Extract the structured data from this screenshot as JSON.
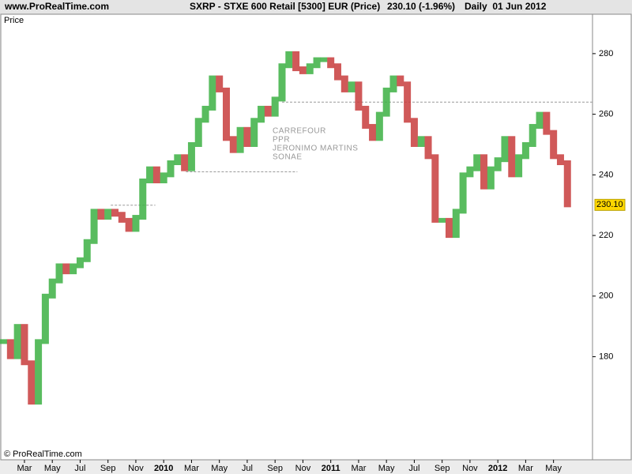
{
  "chart_data": {
    "type": "price-bars",
    "site": "www.ProRealTime.com",
    "title": "SXRP - STXE 600 Retail [5300] EUR (Price)",
    "quote": "230.10 (-1.96%)",
    "period": "Daily  01 Jun 2012",
    "panel_label": "Price",
    "copyright": "© ProRealTime.com",
    "annotations": [
      "CARREFOUR",
      "PPR",
      "JERONIMO MARTINS",
      "SONAE"
    ],
    "up_color": "#3cb043",
    "down_color": "#c83c3c",
    "x": [
      0.5,
      1,
      1.5,
      2,
      2.5,
      3,
      3.5,
      4,
      4.5,
      5,
      5.5,
      6,
      6.5,
      7,
      7.5,
      8,
      8.5,
      9,
      9.5,
      10,
      10.5,
      11,
      11.5,
      12,
      12.5,
      13,
      13.5,
      14,
      14.5,
      15,
      15.5,
      16,
      16.5,
      17,
      17.5,
      18,
      18.5,
      19,
      19.5,
      20,
      20.5,
      21,
      21.5,
      22,
      22.5,
      23,
      23.5,
      24,
      24.5,
      25,
      25.5,
      26,
      26.5,
      27,
      27.5,
      28,
      28.5,
      29,
      29.5,
      30,
      30.5,
      31,
      31.5,
      32,
      32.5,
      33,
      33.5,
      34,
      34.5,
      35,
      35.5,
      36,
      36.5,
      37,
      37.5,
      38,
      38.5,
      39,
      39.5,
      40,
      40.5,
      41
    ],
    "values": [
      185,
      180,
      190,
      178,
      165,
      185,
      200,
      205,
      210,
      208,
      210,
      212,
      218,
      228,
      226,
      228,
      227,
      225,
      222,
      226,
      238,
      242,
      238,
      240,
      244,
      246,
      242,
      250,
      258,
      262,
      272,
      268,
      252,
      248,
      255,
      250,
      258,
      262,
      260,
      265,
      276,
      280,
      275,
      274,
      276,
      278,
      278,
      276,
      272,
      268,
      270,
      262,
      256,
      252,
      260,
      268,
      272,
      270,
      258,
      250,
      252,
      246,
      225,
      225,
      220,
      228,
      240,
      242,
      246,
      236,
      242,
      245,
      252,
      240,
      246,
      250,
      256,
      260,
      254,
      246,
      244,
      230.1
    ],
    "last_price": {
      "value": 230.1,
      "label": "230.10"
    },
    "levels": [
      {
        "value": 264,
        "from": 20.5,
        "to": 42.8
      },
      {
        "value": 241,
        "from": 13.6,
        "to": 21.6
      },
      {
        "value": 230,
        "from": 8.2,
        "to": 11.4
      }
    ],
    "xlim": [
      0.3,
      42.8
    ],
    "xticks": [
      {
        "value": 2,
        "label": "Mar"
      },
      {
        "value": 4,
        "label": "May"
      },
      {
        "value": 6,
        "label": "Jul"
      },
      {
        "value": 8,
        "label": "Sep"
      },
      {
        "value": 10,
        "label": "Nov"
      },
      {
        "value": 12,
        "label": "2010"
      },
      {
        "value": 14,
        "label": "Mar"
      },
      {
        "value": 16,
        "label": "May"
      },
      {
        "value": 18,
        "label": "Jul"
      },
      {
        "value": 20,
        "label": "Sep"
      },
      {
        "value": 22,
        "label": "Nov"
      },
      {
        "value": 24,
        "label": "2011"
      },
      {
        "value": 26,
        "label": "Mar"
      },
      {
        "value": 28,
        "label": "May"
      },
      {
        "value": 30,
        "label": "Jul"
      },
      {
        "value": 32,
        "label": "Sep"
      },
      {
        "value": 34,
        "label": "Nov"
      },
      {
        "value": 36,
        "label": "2012"
      },
      {
        "value": 38,
        "label": "Mar"
      },
      {
        "value": 40,
        "label": "May"
      }
    ],
    "ylim": [
      146,
      293
    ],
    "yticks": [
      180,
      200,
      220,
      240,
      260,
      280
    ]
  }
}
